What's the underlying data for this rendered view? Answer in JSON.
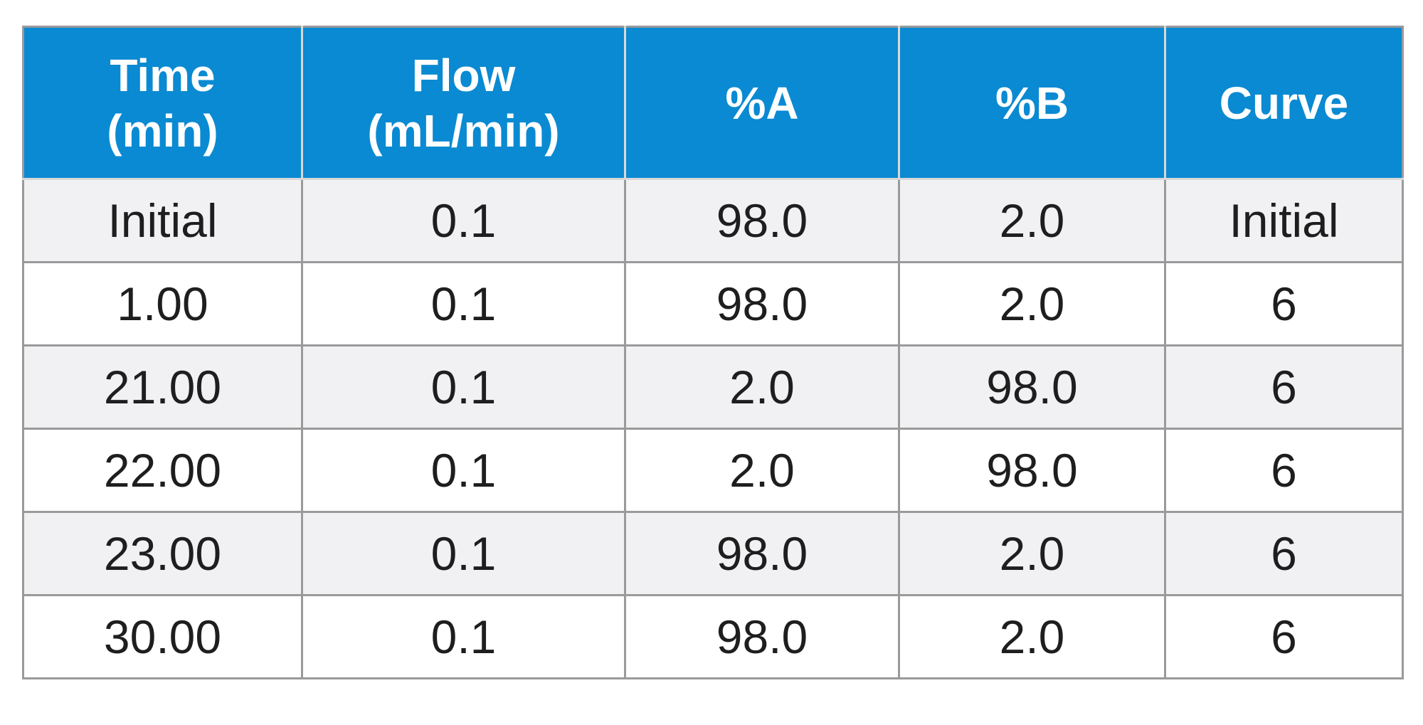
{
  "table": {
    "headers": [
      {
        "line1": "Time",
        "line2": "(min)"
      },
      {
        "line1": "Flow",
        "line2": "(mL/min)"
      },
      {
        "line1": "%A",
        "line2": ""
      },
      {
        "line1": "%B",
        "line2": ""
      },
      {
        "line1": "Curve",
        "line2": ""
      }
    ],
    "rows": [
      [
        "Initial",
        "0.1",
        "98.0",
        "2.0",
        "Initial"
      ],
      [
        "1.00",
        "0.1",
        "98.0",
        "2.0",
        "6"
      ],
      [
        "21.00",
        "0.1",
        "2.0",
        "98.0",
        "6"
      ],
      [
        "22.00",
        "0.1",
        "2.0",
        "98.0",
        "6"
      ],
      [
        "23.00",
        "0.1",
        "98.0",
        "2.0",
        "6"
      ],
      [
        "30.00",
        "0.1",
        "98.0",
        "2.0",
        "6"
      ]
    ]
  },
  "colors": {
    "header_background": "#0a8ad2",
    "header_text": "#ffffff",
    "row_alt_background": "#f1f1f3",
    "border": "#9a9a9a"
  }
}
